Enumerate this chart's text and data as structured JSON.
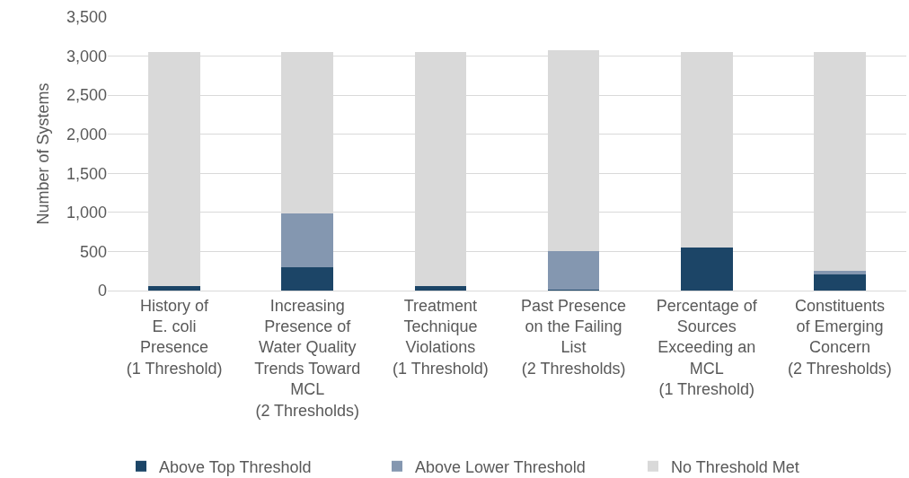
{
  "chart_data": {
    "type": "bar",
    "stacked": true,
    "ylabel": "Number of Systems",
    "categories": [
      "History of\nE. coli\nPresence\n(1 Threshold)",
      "Increasing\nPresence of\nWater Quality\nTrends Toward\nMCL\n(2 Thresholds)",
      "Treatment\nTechnique\nViolations\n(1 Threshold)",
      "Past Presence\non the Failing\nList\n(2 Thresholds)",
      "Percentage of\nSources\nExceeding an\nMCL\n(1 Threshold)",
      "Constituents\nof Emerging\nConcern\n(2 Thresholds)"
    ],
    "series": [
      {
        "name": "Above Top Threshold",
        "color": "#1c4567",
        "values": [
          60,
          300,
          60,
          10,
          550,
          210
        ]
      },
      {
        "name": "Above Lower Threshold",
        "color": "#8497b0",
        "values": [
          0,
          690,
          0,
          500,
          0,
          40
        ]
      },
      {
        "name": "No Threshold Met",
        "color": "#d9d9d9",
        "values": [
          2990,
          2060,
          2990,
          2560,
          2500,
          2800
        ]
      }
    ],
    "ylim": [
      0,
      3500
    ],
    "yticks": [
      0,
      500,
      {
        "value": 1000,
        "label": "1,000"
      },
      {
        "value": 1500,
        "label": "1,500"
      },
      {
        "value": 2000,
        "label": "2,000"
      },
      {
        "value": 2500,
        "label": "2,500"
      },
      {
        "value": 3000,
        "label": "3,000"
      },
      {
        "value": 3500,
        "label": "3,500"
      }
    ],
    "grid": "y",
    "legend": "bottom"
  }
}
